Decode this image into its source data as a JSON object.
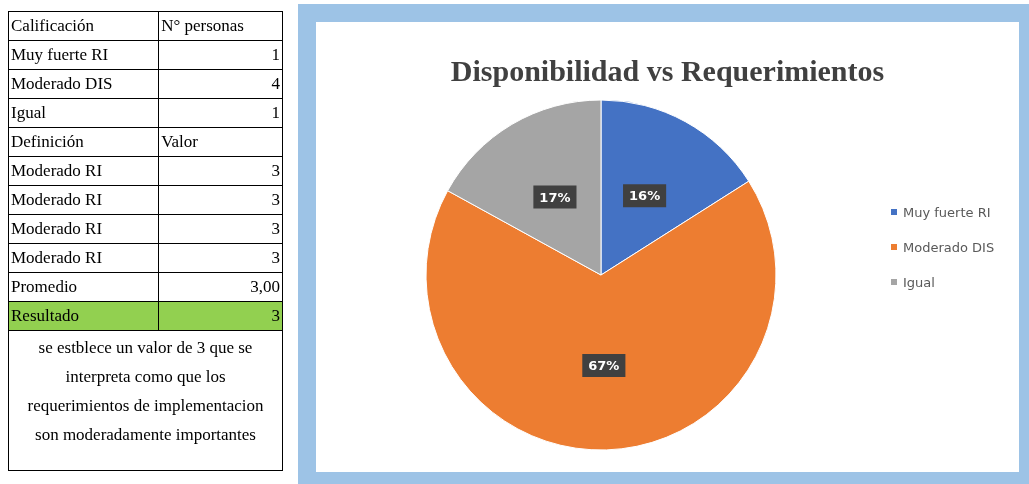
{
  "chart_data": [
    {
      "type": "other",
      "annotations": [
        "Calificación",
        "N° personas",
        "Muy fuerte RI",
        "1",
        "Moderado DIS",
        "4",
        "Igual",
        "1",
        "Definición",
        "Valor",
        "Moderado RI",
        "3",
        "Moderado RI",
        "3",
        "Moderado RI",
        "3",
        "Moderado RI",
        "3",
        "Promedio",
        "3,00",
        "Resultado",
        "3",
        "se estblece un valor de 3 que se interpreta como que los requerimientos de implementacion son moderadamente importantes"
      ],
      "colors": [
        null,
        null,
        null,
        null,
        null,
        null,
        null,
        null,
        null,
        null,
        "#92d050"
      ]
    },
    {
      "type": "pie",
      "title": "Disponibilidad vs Requerimientos",
      "categories": [
        "Muy fuerte RI",
        "Moderado DIS",
        "Igual"
      ],
      "values": [
        16,
        67,
        17
      ],
      "colors": [
        "#4472c4",
        "#ed7d31",
        "#a5a5a5"
      ],
      "value_labels": [
        "16%",
        "67%",
        "17%"
      ],
      "legend": "right"
    }
  ]
}
